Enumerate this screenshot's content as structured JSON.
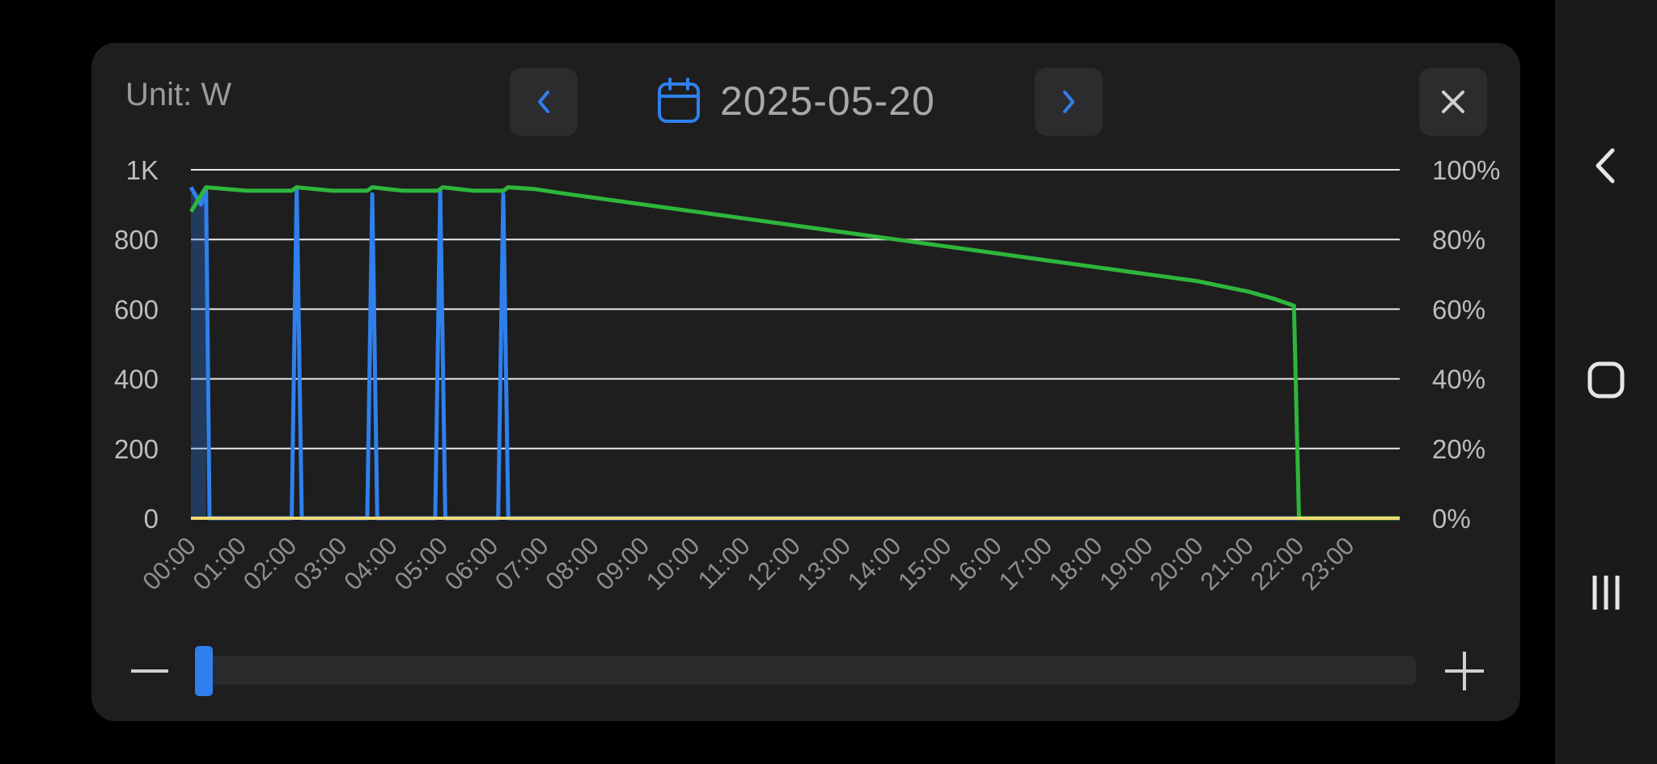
{
  "unit_label": "Unit: W",
  "date": "2025-05-20",
  "icons": {
    "prev": "chevron-left-icon",
    "next": "chevron-right-icon",
    "calendar": "calendar-icon",
    "close": "close-icon",
    "zoom_out": "minus-icon",
    "zoom_in": "plus-icon",
    "nav_back": "back-icon",
    "nav_home": "home-icon",
    "nav_recents": "recents-icon"
  },
  "colors": {
    "power": "#2f80ed",
    "soc": "#2eb63c",
    "baseline": "#f2d974",
    "accent": "#2f80ed"
  },
  "zoom": {
    "level": 0.0
  },
  "chart_data": {
    "type": "line",
    "x_unit": "hours",
    "x_ticks": [
      "00:00",
      "01:00",
      "02:00",
      "03:00",
      "04:00",
      "05:00",
      "06:00",
      "07:00",
      "08:00",
      "09:00",
      "10:00",
      "11:00",
      "12:00",
      "13:00",
      "14:00",
      "15:00",
      "16:00",
      "17:00",
      "18:00",
      "19:00",
      "20:00",
      "21:00",
      "22:00",
      "23:00"
    ],
    "xlim": [
      0,
      24
    ],
    "y_left": {
      "ticks": [
        "0",
        "200",
        "400",
        "600",
        "800",
        "1K"
      ],
      "ylim": [
        0,
        1000
      ]
    },
    "y_right": {
      "ticks": [
        "0%",
        "20%",
        "40%",
        "60%",
        "80%",
        "100%"
      ],
      "ylim": [
        0,
        100
      ]
    },
    "grid": true,
    "series": [
      {
        "axis": "left",
        "color": "#2f80ed",
        "points": [
          [
            0,
            950
          ],
          [
            0.2,
            900
          ],
          [
            0.3,
            940
          ],
          [
            0.37,
            0
          ],
          [
            2.0,
            0
          ],
          [
            2.1,
            950
          ],
          [
            2.2,
            0
          ],
          [
            3.5,
            0
          ],
          [
            3.6,
            930
          ],
          [
            3.7,
            0
          ],
          [
            4.85,
            0
          ],
          [
            4.95,
            940
          ],
          [
            5.05,
            0
          ],
          [
            6.1,
            0
          ],
          [
            6.2,
            930
          ],
          [
            6.3,
            0
          ],
          [
            24,
            0
          ]
        ]
      },
      {
        "axis": "right",
        "color": "#2eb63c",
        "points": [
          [
            0,
            88
          ],
          [
            0.3,
            95
          ],
          [
            1.1,
            94
          ],
          [
            2.0,
            94
          ],
          [
            2.1,
            95
          ],
          [
            2.8,
            94
          ],
          [
            3.5,
            94
          ],
          [
            3.6,
            95
          ],
          [
            4.2,
            94
          ],
          [
            4.9,
            94
          ],
          [
            5.0,
            95
          ],
          [
            5.6,
            94
          ],
          [
            6.2,
            94
          ],
          [
            6.3,
            95
          ],
          [
            6.8,
            94.5
          ],
          [
            7.5,
            93
          ],
          [
            8,
            92
          ],
          [
            9,
            90
          ],
          [
            10,
            88
          ],
          [
            11,
            86
          ],
          [
            12,
            84
          ],
          [
            13,
            82
          ],
          [
            14,
            80
          ],
          [
            15,
            78
          ],
          [
            16,
            76
          ],
          [
            17,
            74
          ],
          [
            18,
            72
          ],
          [
            19,
            70
          ],
          [
            20,
            68
          ],
          [
            21,
            65
          ],
          [
            21.5,
            63
          ],
          [
            21.9,
            61
          ],
          [
            22.0,
            0
          ],
          [
            24,
            0
          ]
        ]
      },
      {
        "axis": "left",
        "color": "#f2d974",
        "points": [
          [
            0,
            0
          ],
          [
            24,
            0
          ]
        ]
      }
    ]
  }
}
